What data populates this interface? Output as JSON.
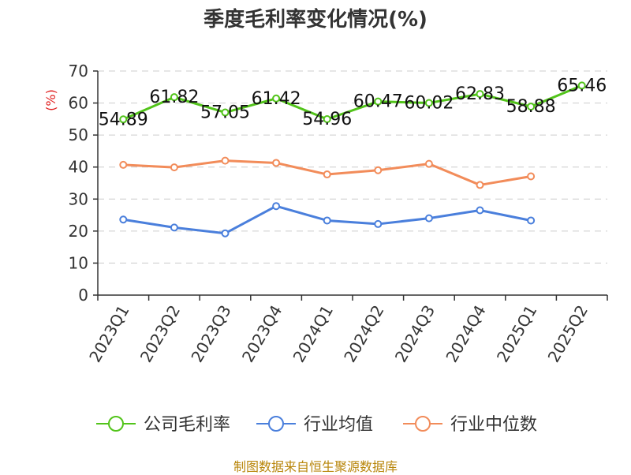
{
  "chart_data": {
    "type": "line",
    "title": "季度毛利率变化情况(%)",
    "ylabel": "(%)",
    "ylim": [
      0,
      70
    ],
    "yticks": [
      0,
      10,
      20,
      30,
      40,
      50,
      60,
      70
    ],
    "grid": true,
    "legend_position": "bottom",
    "categories": [
      "2023Q1",
      "2023Q2",
      "2023Q3",
      "2023Q4",
      "2024Q1",
      "2024Q2",
      "2024Q3",
      "2024Q4",
      "2025Q1",
      "2025Q2"
    ],
    "series": [
      {
        "name": "公司毛利率",
        "color": "#52c41a",
        "labels": true,
        "values": [
          54.89,
          61.82,
          57.05,
          61.42,
          54.96,
          60.47,
          60.02,
          62.83,
          58.88,
          65.46
        ]
      },
      {
        "name": "行业均值",
        "color": "#4a7fdc",
        "labels": false,
        "values": [
          23.6,
          21.1,
          19.3,
          27.8,
          23.3,
          22.2,
          24.0,
          26.5,
          23.3,
          null
        ]
      },
      {
        "name": "行业中位数",
        "color": "#f28c5a",
        "labels": false,
        "values": [
          40.7,
          39.9,
          42.0,
          41.3,
          37.7,
          39.0,
          41.0,
          34.4,
          37.1,
          null
        ]
      }
    ]
  },
  "footer": {
    "source": "制图数据来自恒生聚源数据库"
  }
}
